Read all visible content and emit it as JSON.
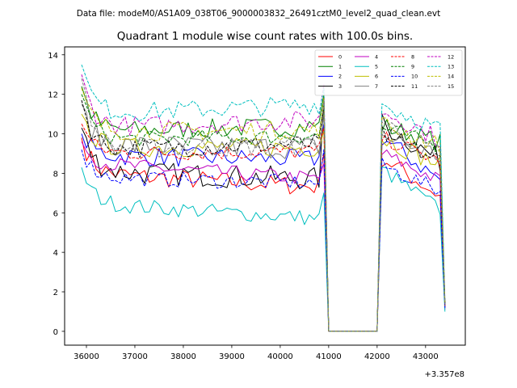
{
  "header": "Data file: modeM0/AS1A09_038T06_9000003832_26491cztM0_level2_quad_clean.evt",
  "chart_data": {
    "type": "line",
    "title": "Quadrant 1 module wise count rates with 100.0s bins.",
    "xlabel": "",
    "ylabel": "",
    "x_offset_label": "+3.357e8",
    "xlim": [
      35550,
      43820
    ],
    "ylim": [
      -0.7,
      14.4
    ],
    "xticks": [
      36000,
      37000,
      38000,
      39000,
      40000,
      41000,
      42000,
      43000
    ],
    "yticks": [
      0,
      2,
      4,
      6,
      8,
      10,
      12,
      14
    ],
    "legend_position": "top-right",
    "segments": [
      {
        "x_start": 35900,
        "x_end": 40900,
        "step": 100
      },
      {
        "x_start": 41000,
        "x_end": 42000,
        "step": 100
      },
      {
        "x_start": 42100,
        "x_end": 43400,
        "step": 100
      }
    ],
    "series": [
      {
        "name": "0",
        "color": "#ff0000",
        "dash": false,
        "start": 9.8,
        "level": 8.0,
        "drift": -0.7,
        "amp": 0.5,
        "peak": 9.0,
        "post": 8.8,
        "post_end": 6.7,
        "final": 1.2
      },
      {
        "name": "1",
        "color": "#008000",
        "dash": false,
        "start": 12.4,
        "level": 10.1,
        "drift": 0.3,
        "amp": 0.5,
        "peak": 12.0,
        "post": 10.4,
        "post_end": 9.5,
        "final": 1.3
      },
      {
        "name": "2",
        "color": "#0000ff",
        "dash": false,
        "start": 10.0,
        "level": 8.9,
        "drift": -0.2,
        "amp": 0.5,
        "peak": 10.5,
        "post": 9.8,
        "post_end": 7.5,
        "final": 1.2
      },
      {
        "name": "3",
        "color": "#000000",
        "dash": false,
        "start": 10.3,
        "level": 8.1,
        "drift": -0.4,
        "amp": 0.6,
        "peak": 11.8,
        "post": 10.5,
        "post_end": 8.5,
        "final": 1.3
      },
      {
        "name": "4",
        "color": "#c000c0",
        "dash": false,
        "start": 9.6,
        "level": 8.5,
        "drift": -0.8,
        "amp": 0.4,
        "peak": 8.5,
        "post": 9.0,
        "post_end": 7.5,
        "final": 1.1
      },
      {
        "name": "5",
        "color": "#00bfbf",
        "dash": false,
        "start": 8.3,
        "level": 6.5,
        "drift": -0.8,
        "amp": 0.4,
        "peak": 7.0,
        "post": 8.2,
        "post_end": 6.0,
        "final": 1.0
      },
      {
        "name": "6",
        "color": "#bfbf00",
        "dash": false,
        "start": 11.0,
        "level": 9.3,
        "drift": 0.0,
        "amp": 0.5,
        "peak": 10.2,
        "post": 9.8,
        "post_end": 8.3,
        "final": 1.3
      },
      {
        "name": "7",
        "color": "#808080",
        "dash": false,
        "start": 11.5,
        "level": 9.4,
        "drift": -0.1,
        "amp": 0.6,
        "peak": 11.0,
        "post": 9.9,
        "post_end": 8.8,
        "final": 1.3
      },
      {
        "name": "8",
        "color": "#ff0000",
        "dash": true,
        "start": 10.5,
        "level": 9.0,
        "drift": 0.1,
        "amp": 0.4,
        "peak": 10.3,
        "post": 9.8,
        "post_end": 8.5,
        "final": 1.3
      },
      {
        "name": "9",
        "color": "#008000",
        "dash": true,
        "start": 12.0,
        "level": 9.7,
        "drift": 0.2,
        "amp": 0.4,
        "peak": 11.8,
        "post": 10.3,
        "post_end": 9.3,
        "final": 1.4
      },
      {
        "name": "10",
        "color": "#0000ff",
        "dash": true,
        "start": 9.2,
        "level": 7.8,
        "drift": -0.3,
        "amp": 0.4,
        "peak": 9.2,
        "post": 8.4,
        "post_end": 7.0,
        "final": 1.2
      },
      {
        "name": "11",
        "color": "#000000",
        "dash": true,
        "start": 11.7,
        "level": 9.2,
        "drift": 0.3,
        "amp": 0.5,
        "peak": 11.5,
        "post": 10.0,
        "post_end": 8.5,
        "final": 1.4
      },
      {
        "name": "12",
        "color": "#c000c0",
        "dash": true,
        "start": 13.0,
        "level": 10.3,
        "drift": 0.4,
        "amp": 0.5,
        "peak": 12.5,
        "post": 11.2,
        "post_end": 9.6,
        "final": 1.5
      },
      {
        "name": "13",
        "color": "#00bfbf",
        "dash": true,
        "start": 13.5,
        "level": 11.0,
        "drift": 0.5,
        "amp": 0.5,
        "peak": 12.3,
        "post": 11.5,
        "post_end": 10.1,
        "final": 1.5
      },
      {
        "name": "14",
        "color": "#bfbf00",
        "dash": true,
        "start": 12.3,
        "level": 10.1,
        "drift": 0.1,
        "amp": 0.5,
        "peak": 11.8,
        "post": 10.5,
        "post_end": 9.3,
        "final": 1.4
      },
      {
        "name": "15",
        "color": "#808080",
        "dash": true,
        "start": 12.8,
        "level": 9.2,
        "drift": 0.2,
        "amp": 0.5,
        "peak": 11.7,
        "post": 10.6,
        "post_end": 8.8,
        "final": 1.4
      }
    ]
  }
}
